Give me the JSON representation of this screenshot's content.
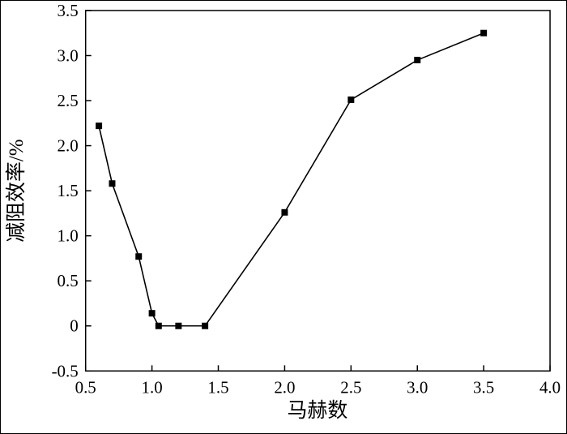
{
  "figure": {
    "background": "#ffffff",
    "frame_color": "#000000"
  },
  "chart_data": {
    "type": "line",
    "title": "",
    "xlabel": "马赫数",
    "ylabel": "减阻效率/%",
    "x": [
      0.6,
      0.7,
      0.9,
      1.0,
      1.05,
      1.2,
      1.4,
      2.0,
      2.5,
      3.0,
      3.5
    ],
    "y": [
      2.22,
      1.58,
      0.77,
      0.14,
      0.0,
      0.0,
      0.0,
      1.26,
      2.51,
      2.95,
      3.25
    ],
    "xlim": [
      0.5,
      4.0
    ],
    "ylim": [
      -0.5,
      3.5
    ],
    "x_ticks": [
      0.5,
      1.0,
      1.5,
      2.0,
      2.5,
      3.0,
      3.5,
      4.0
    ],
    "x_tick_labels": [
      "0.5",
      "1.0",
      "1.5",
      "2.0",
      "2.5",
      "3.0",
      "3.5",
      "4.0"
    ],
    "y_ticks": [
      -0.5,
      0,
      0.5,
      1.0,
      1.5,
      2.0,
      2.5,
      3.0,
      3.5
    ],
    "y_tick_labels": [
      "-0.5",
      "0",
      "0.5",
      "1.0",
      "1.5",
      "2.0",
      "2.5",
      "3.0",
      "3.5"
    ],
    "marker": "square",
    "marker_size": 8,
    "line_color": "#000000",
    "marker_color": "#000000",
    "grid": false,
    "legend": null
  }
}
